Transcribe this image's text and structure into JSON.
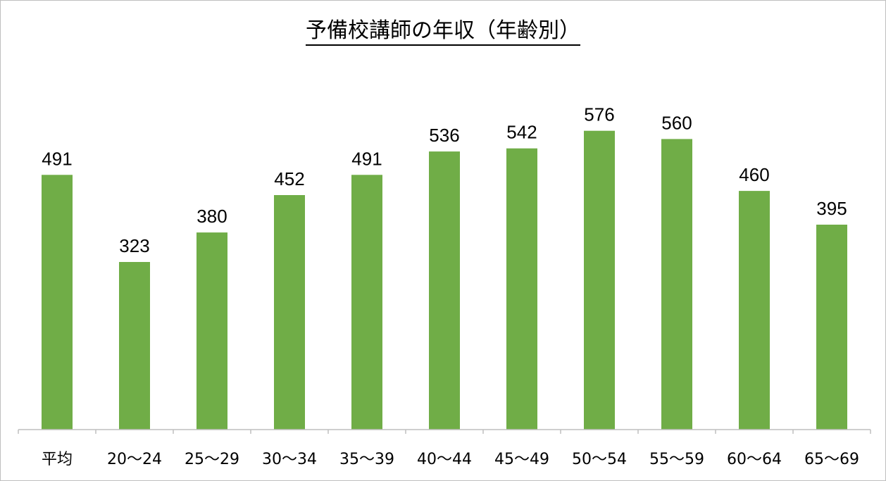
{
  "chart_data": {
    "type": "bar",
    "title": "予備校講師の年収（年齢別）",
    "categories": [
      "平均",
      "20～24",
      "25～29",
      "30～34",
      "35～39",
      "40～44",
      "45～49",
      "50～54",
      "55～59",
      "60～64",
      "65～69"
    ],
    "values": [
      491,
      323,
      380,
      452,
      491,
      536,
      542,
      576,
      560,
      460,
      395
    ],
    "xlabel": "",
    "ylabel": "",
    "ylim": [
      0,
      820
    ],
    "grid": false,
    "legend": "none",
    "bar_color": "#70ad47",
    "axis_color": "#bfbfbf"
  }
}
